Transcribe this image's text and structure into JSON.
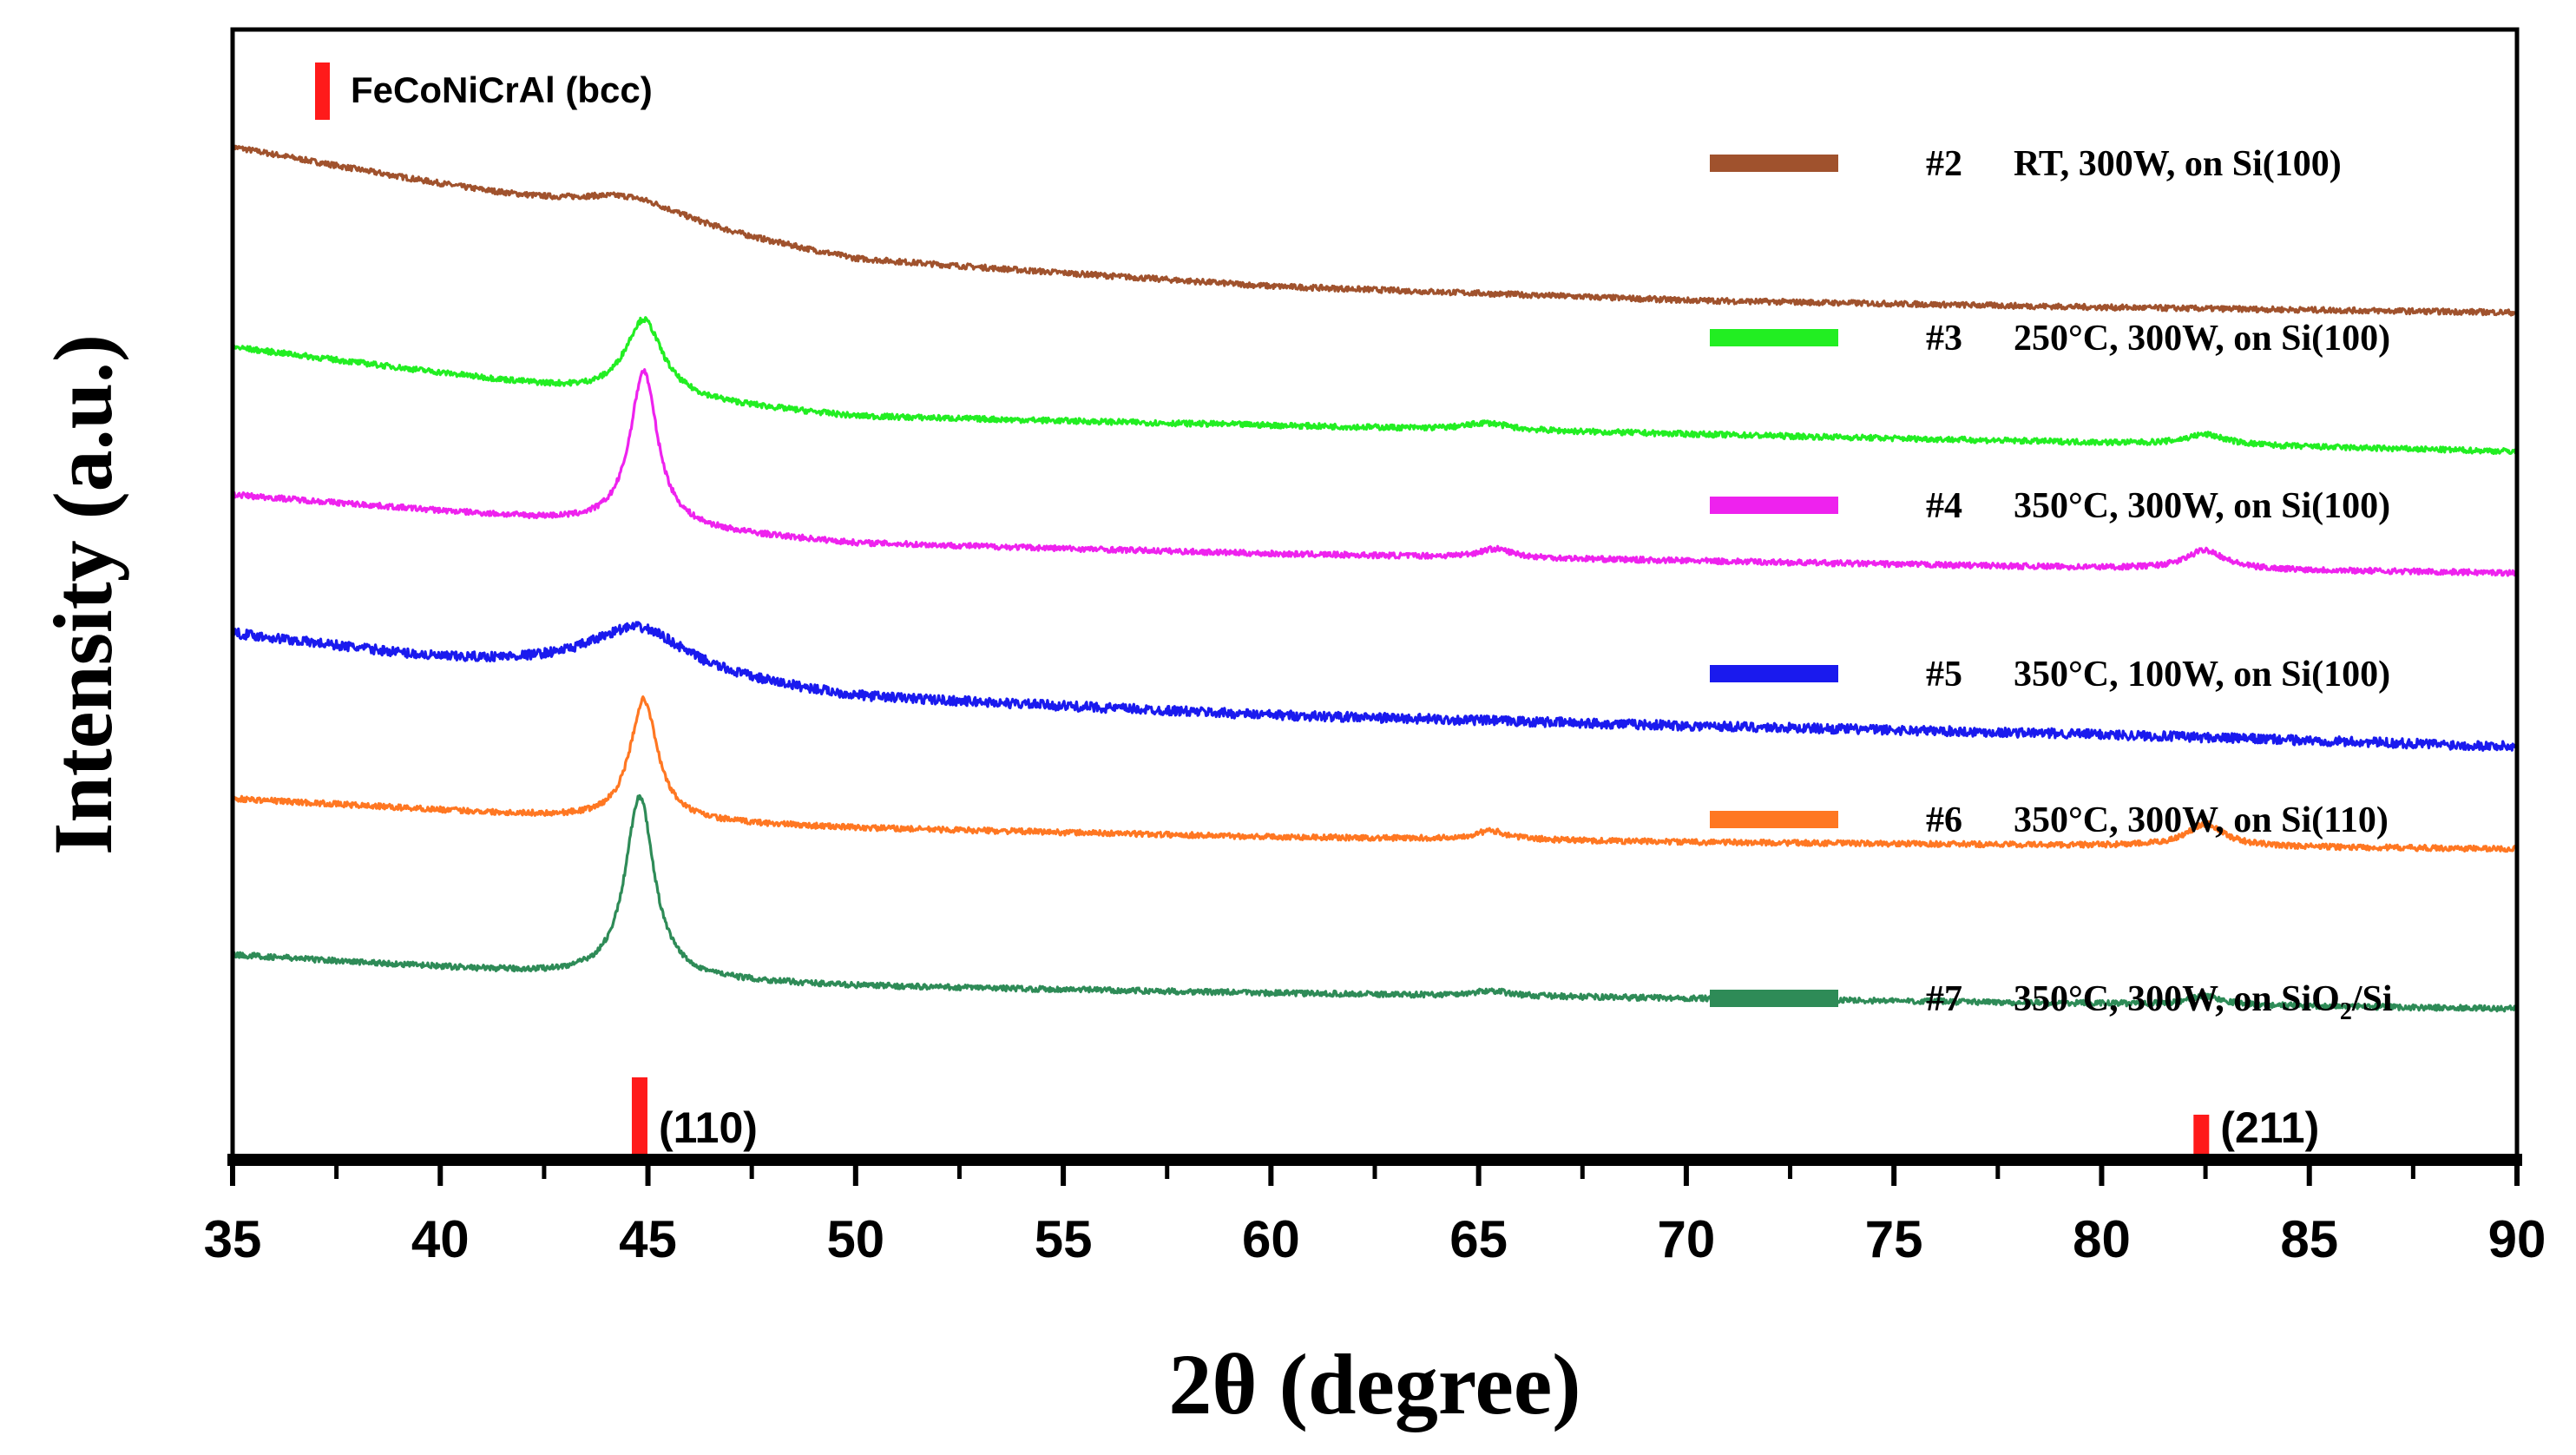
{
  "chart_data": {
    "type": "line",
    "xlabel": "2θ (degree)",
    "ylabel": "Intensity (a.u.)",
    "xlim": [
      35,
      90
    ],
    "xticks": [
      35,
      40,
      45,
      50,
      55,
      60,
      65,
      70,
      75,
      80,
      85,
      90
    ],
    "grid": false,
    "legend_position": "right",
    "reference": {
      "label": "FeCoNiCrAl (bcc)",
      "color": "#ff1a1a",
      "peaks": [
        {
          "label": "(110)",
          "x": 44.8
        },
        {
          "label": "(211)",
          "x": 82.4
        }
      ]
    },
    "series": [
      {
        "id": "#2",
        "condition": "RT, 300W, on Si(100)",
        "color": "#a0522d",
        "baseline": [
          [
            35,
            600
          ],
          [
            44,
            560
          ],
          [
            50,
            535
          ],
          [
            60,
            520
          ],
          [
            70,
            512
          ],
          [
            80,
            508
          ],
          [
            90,
            505
          ]
        ],
        "peaks": [
          {
            "x": 44.6,
            "height": 14,
            "width": 1.7
          }
        ]
      },
      {
        "id": "#3",
        "condition": "250°C, 300W, on Si(100)",
        "color": "#22ee22",
        "baseline": [
          [
            35,
            485
          ],
          [
            44,
            458
          ],
          [
            50,
            445
          ],
          [
            60,
            440
          ],
          [
            70,
            435
          ],
          [
            80,
            430
          ],
          [
            90,
            425
          ]
        ],
        "peaks": [
          {
            "x": 44.9,
            "height": 45,
            "width": 0.55
          },
          {
            "x": 65.2,
            "height": 4,
            "width": 0.6
          },
          {
            "x": 82.5,
            "height": 6,
            "width": 0.6
          }
        ]
      },
      {
        "id": "#4",
        "condition": "350°C, 300W, on Si(100)",
        "color": "#ee22ee",
        "baseline": [
          [
            35,
            400
          ],
          [
            44,
            383
          ],
          [
            50,
            372
          ],
          [
            60,
            366
          ],
          [
            70,
            362
          ],
          [
            80,
            358
          ],
          [
            90,
            355
          ]
        ],
        "peaks": [
          {
            "x": 44.9,
            "height": 90,
            "width": 0.4
          },
          {
            "x": 65.4,
            "height": 5,
            "width": 0.5
          },
          {
            "x": 82.5,
            "height": 11,
            "width": 0.55
          }
        ]
      },
      {
        "id": "#5",
        "condition": "350°C, 100W, on Si(100)",
        "color": "#1a1aee",
        "baseline": [
          [
            35,
            320
          ],
          [
            40,
            305
          ],
          [
            44,
            300
          ],
          [
            50,
            283
          ],
          [
            60,
            273
          ],
          [
            70,
            267
          ],
          [
            80,
            262
          ],
          [
            90,
            255
          ]
        ],
        "peaks": [
          {
            "x": 44.8,
            "height": 26,
            "width": 1.4
          }
        ]
      },
      {
        "id": "#6",
        "condition": "350°C, 300W, on Si(110)",
        "color": "#ff7722",
        "baseline": [
          [
            35,
            225
          ],
          [
            44,
            213
          ],
          [
            50,
            208
          ],
          [
            60,
            203
          ],
          [
            70,
            200
          ],
          [
            80,
            198
          ],
          [
            90,
            196
          ]
        ],
        "peaks": [
          {
            "x": 44.9,
            "height": 70,
            "width": 0.4
          },
          {
            "x": 65.3,
            "height": 5,
            "width": 0.5
          },
          {
            "x": 82.5,
            "height": 13,
            "width": 0.55
          }
        ]
      },
      {
        "id": "#7",
        "condition": "350°C, 300W, on SiO",
        "condition_sub": "2",
        "condition_tail": "/Si",
        "color": "#2e8b57",
        "baseline": [
          [
            35,
            135
          ],
          [
            44,
            122
          ],
          [
            50,
            117
          ],
          [
            60,
            113
          ],
          [
            70,
            110
          ],
          [
            80,
            107
          ],
          [
            90,
            104
          ]
        ],
        "peaks": [
          {
            "x": 44.8,
            "height": 105,
            "width": 0.42
          },
          {
            "x": 65.3,
            "height": 3,
            "width": 0.5
          },
          {
            "x": 82.5,
            "height": 5,
            "width": 0.5
          }
        ]
      }
    ]
  }
}
